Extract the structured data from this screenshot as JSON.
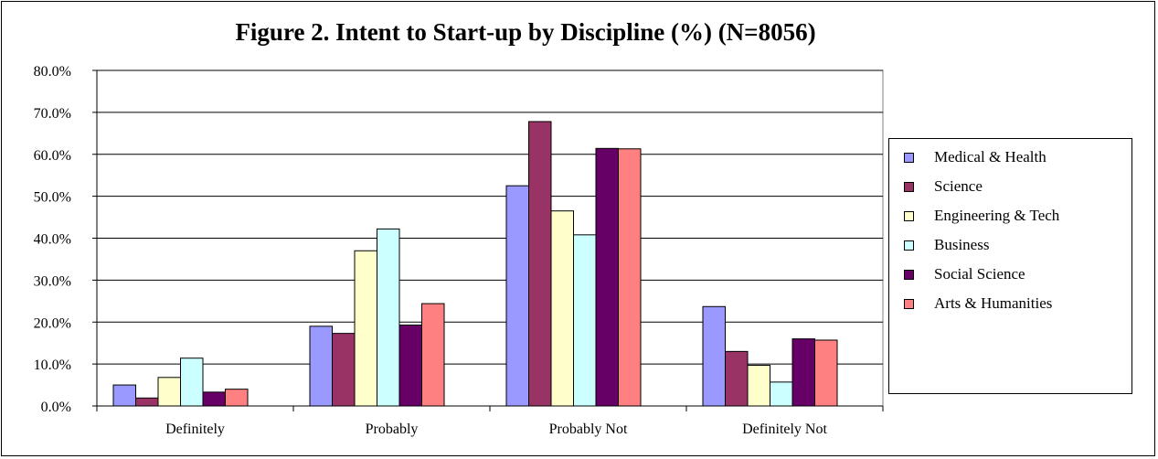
{
  "chart_data": {
    "type": "bar",
    "title": "Figure 2. Intent to Start-up by Discipline (%) (N=8056)",
    "categories": [
      "Definitely",
      "Probably",
      "Probably Not",
      "Definitely Not"
    ],
    "series": [
      {
        "name": "Medical & Health",
        "color": "#9999ff",
        "values": [
          5.0,
          19.0,
          52.5,
          23.7
        ]
      },
      {
        "name": "Science",
        "color": "#993366",
        "values": [
          1.9,
          17.3,
          67.8,
          13.0
        ]
      },
      {
        "name": "Engineering & Tech",
        "color": "#ffffcc",
        "values": [
          6.8,
          37.0,
          46.5,
          9.7
        ]
      },
      {
        "name": "Business",
        "color": "#ccffff",
        "values": [
          11.4,
          42.2,
          40.8,
          5.7
        ]
      },
      {
        "name": "Social Science",
        "color": "#660066",
        "values": [
          3.3,
          19.3,
          61.4,
          16.0
        ]
      },
      {
        "name": "Arts & Humanities",
        "color": "#ff8080",
        "values": [
          4.0,
          24.4,
          61.3,
          15.7
        ]
      }
    ],
    "yticks": [
      "0.0%",
      "10.0%",
      "20.0%",
      "30.0%",
      "40.0%",
      "50.0%",
      "60.0%",
      "70.0%",
      "80.0%"
    ],
    "ylim": [
      0,
      80
    ],
    "grid": true,
    "legend_position": "right"
  }
}
